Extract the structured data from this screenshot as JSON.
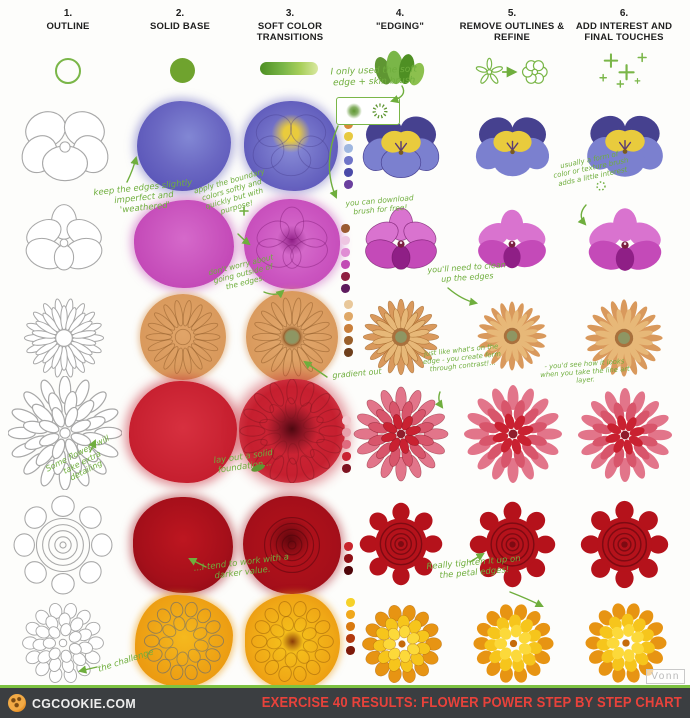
{
  "columns": [
    {
      "num": "1.",
      "label": "OUTLINE"
    },
    {
      "num": "2.",
      "label": "SOLID BASE"
    },
    {
      "num": "3.",
      "label": "SOFT COLOR TRANSITIONS"
    },
    {
      "num": "4.",
      "label": "\"EDGING\""
    },
    {
      "num": "5.",
      "label": "REMOVE OUTLINES & REFINE"
    },
    {
      "num": "6.",
      "label": "ADD INTEREST AND FINAL TOUCHES"
    }
  ],
  "annotations": [
    {
      "text": "I only used the soft edge + skin brush"
    },
    {
      "text": "keep the edges slightly imperfect and 'weathered'"
    },
    {
      "text": "apply the boundary colors softly and quickly but with purpose!"
    },
    {
      "text": "you can download brush for free!"
    },
    {
      "text": "usually a form of color or texture brush adds a little interest"
    },
    {
      "text": "don't worry about going outside of the edges."
    },
    {
      "text": "you'll need to clean up the edges"
    },
    {
      "text": "just like what's on the edge - you create form through contrast!..."
    },
    {
      "text": "- you'd see how it looks when you take the line art layer."
    },
    {
      "text": "gradient out"
    },
    {
      "text": "Some flowers will take extra detailing"
    },
    {
      "text": "lay out a solid foundation..."
    },
    {
      "text": "...I tend to work with a darker value."
    },
    {
      "text": "Really tighten it up on the petal edges!"
    },
    {
      "text": "the challenge"
    }
  ],
  "swatches": {
    "pansy": [
      "#d78a3a",
      "#e7c93f",
      "#9fb7e0",
      "#6f74c8",
      "#4a4aa8",
      "#6a3f9e"
    ],
    "orchid": [
      "#9a5a32",
      "#eec6e2",
      "#e08cd4",
      "#c24ab4",
      "#8f1f40",
      "#5e1b5e"
    ],
    "gerbera": [
      "#e9c89a",
      "#dfa867",
      "#c97f3b",
      "#9a5f2a",
      "#6e3f1c"
    ],
    "dahlia": [
      "#f2c9cf",
      "#e8a0ab",
      "#df6b7e",
      "#c92131",
      "#7e1220"
    ],
    "rose": [
      "#c9242c",
      "#8f1016",
      "#4f0509"
    ],
    "marigold": [
      "#f6d22a",
      "#f0a81c",
      "#d97a10",
      "#b33a0e",
      "#7e1a0a"
    ]
  },
  "palette": {
    "annotation_green": "#6fae3d",
    "icon_green": "#7ab648",
    "header_text": "#1f1f1f",
    "footer_bg": "#3b3e41",
    "footer_green": "#7dc242",
    "footer_title_red": "#e8423b",
    "pansy": {
      "blue": "#7b80cf",
      "deep": "#5a55b8",
      "dark": "#46418f",
      "yellow": "#e9cb3d"
    },
    "orchid": {
      "pink": "#d973cf",
      "magenta": "#c44ab8",
      "deep": "#8f1f86",
      "center": "#7a1f3f"
    },
    "gerbera": {
      "orange": "#d9995c",
      "light": "#e7b878",
      "center": "#8e9663",
      "brown": "#a9713d"
    },
    "dahlia": {
      "pink": "#e2758a",
      "mid": "#d8556b",
      "red": "#c92131",
      "dark": "#8f1d2c"
    },
    "rose": {
      "red": "#b5121b",
      "dark": "#7e0a12"
    },
    "marigold": {
      "yellow": "#f6c51c",
      "light": "#fcd93a",
      "orange": "#e79413",
      "deep": "#c66a0a"
    }
  },
  "footer": {
    "site": "CGCOOKIE.COM",
    "title": "EXERCISE 40 RESULTS: FLOWER POWER STEP BY STEP CHART"
  },
  "watermark": "Vonn"
}
